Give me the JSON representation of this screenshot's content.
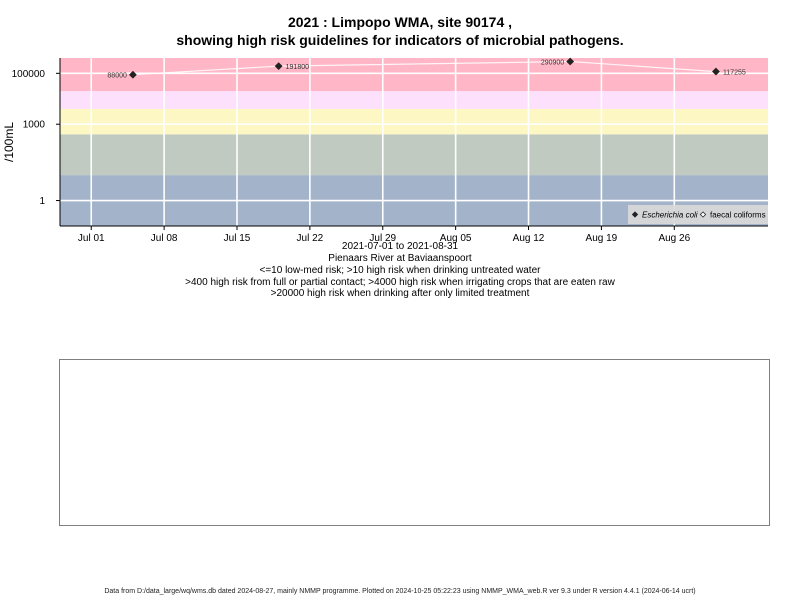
{
  "title_line1": "2021 : Limpopo WMA, site 90174 ,",
  "title_line2": "showing high risk guidelines for indicators of microbial pathogens.",
  "chart_data": {
    "type": "scatter",
    "ylabel": "/100mL",
    "y_scale": "log10",
    "ylim": [
      0.1,
      400000
    ],
    "y_ticks": [
      {
        "value": 1,
        "label": "1"
      },
      {
        "value": 1000,
        "label": "1000"
      },
      {
        "value": 100000,
        "label": "100000"
      }
    ],
    "x_range": [
      "2021-06-28",
      "2021-09-04"
    ],
    "x_ticks": [
      {
        "date": "2021-07-01",
        "label": "Jul 01"
      },
      {
        "date": "2021-07-08",
        "label": "Jul 08"
      },
      {
        "date": "2021-07-15",
        "label": "Jul 15"
      },
      {
        "date": "2021-07-22",
        "label": "Jul 22"
      },
      {
        "date": "2021-07-29",
        "label": "Jul 29"
      },
      {
        "date": "2021-08-05",
        "label": "Aug 05"
      },
      {
        "date": "2021-08-12",
        "label": "Aug 12"
      },
      {
        "date": "2021-08-19",
        "label": "Aug 19"
      },
      {
        "date": "2021-08-26",
        "label": "Aug 26"
      }
    ],
    "bands": [
      {
        "from": 0.1,
        "to": 10,
        "color": "#a2b3ca"
      },
      {
        "from": 10,
        "to": 400,
        "color": "#c1cac0"
      },
      {
        "from": 400,
        "to": 4000,
        "color": "#fdf7c4"
      },
      {
        "from": 4000,
        "to": 20000,
        "color": "#fde0fb"
      },
      {
        "from": 20000,
        "to": 400000,
        "color": "#ffb6c6"
      }
    ],
    "series": [
      {
        "name": "Escherichia coli",
        "marker": "filled-diamond",
        "color": "#222222",
        "points": [
          {
            "date": "2021-07-05",
            "value": 88000,
            "label": "88000"
          },
          {
            "date": "2021-07-19",
            "value": 191800,
            "label": "191800"
          },
          {
            "date": "2021-08-16",
            "value": 290900,
            "label": "290900"
          },
          {
            "date": "2021-08-30",
            "value": 117255,
            "label": "117255"
          }
        ]
      },
      {
        "name": "faecal coliforms",
        "marker": "open-diamond",
        "color": "#222222",
        "points": []
      }
    ],
    "legend_position": "bottom-right"
  },
  "info_lines": [
    "2021-07-01 to 2021-08-31",
    "Pienaars River at Baviaanspoort",
    "<=10 low-med risk; >10 high risk when drinking untreated water",
    ">400 high risk from full or partial contact; >4000 high risk when irrigating crops that are eaten raw",
    ">20000 high risk when drinking after only limited treatment"
  ],
  "footer": "Data from D:/data_large/wq/wms.db dated 2024-08-27, mainly NMMP programme. Plotted on 2024-10-25 05:22:23 using NMMP_WMA_web.R ver 9.3 under R version 4.4.1 (2024-06-14 ucrt)"
}
